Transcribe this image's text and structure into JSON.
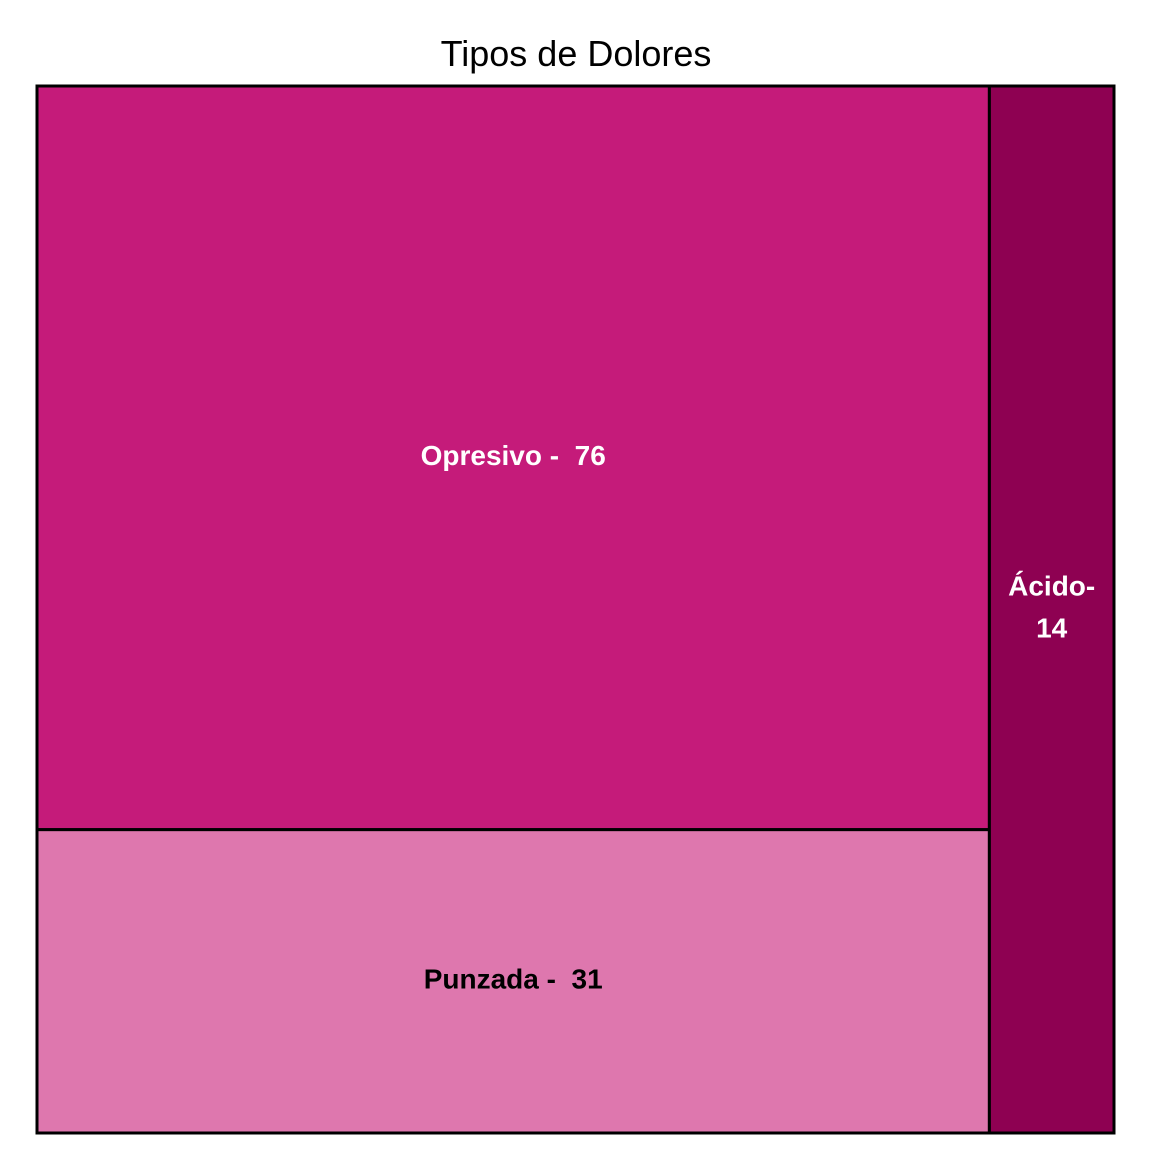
{
  "chart_data": {
    "type": "treemap",
    "title": "Tipos de Dolores",
    "items": [
      {
        "name": "Opresivo",
        "value": 76,
        "label": "Opresivo -  76",
        "color": "#C51B7A",
        "text_color": "#FFFFFF"
      },
      {
        "name": "Punzada",
        "value": 31,
        "label": "Punzada -  31",
        "color": "#DE77AE",
        "text_color": "#000000"
      },
      {
        "name": "Ácido",
        "value": 14,
        "label_lines": [
          "Ácido-",
          "14"
        ],
        "color": "#8E0152",
        "text_color": "#FFFFFF"
      }
    ],
    "border_color": "#000000"
  }
}
